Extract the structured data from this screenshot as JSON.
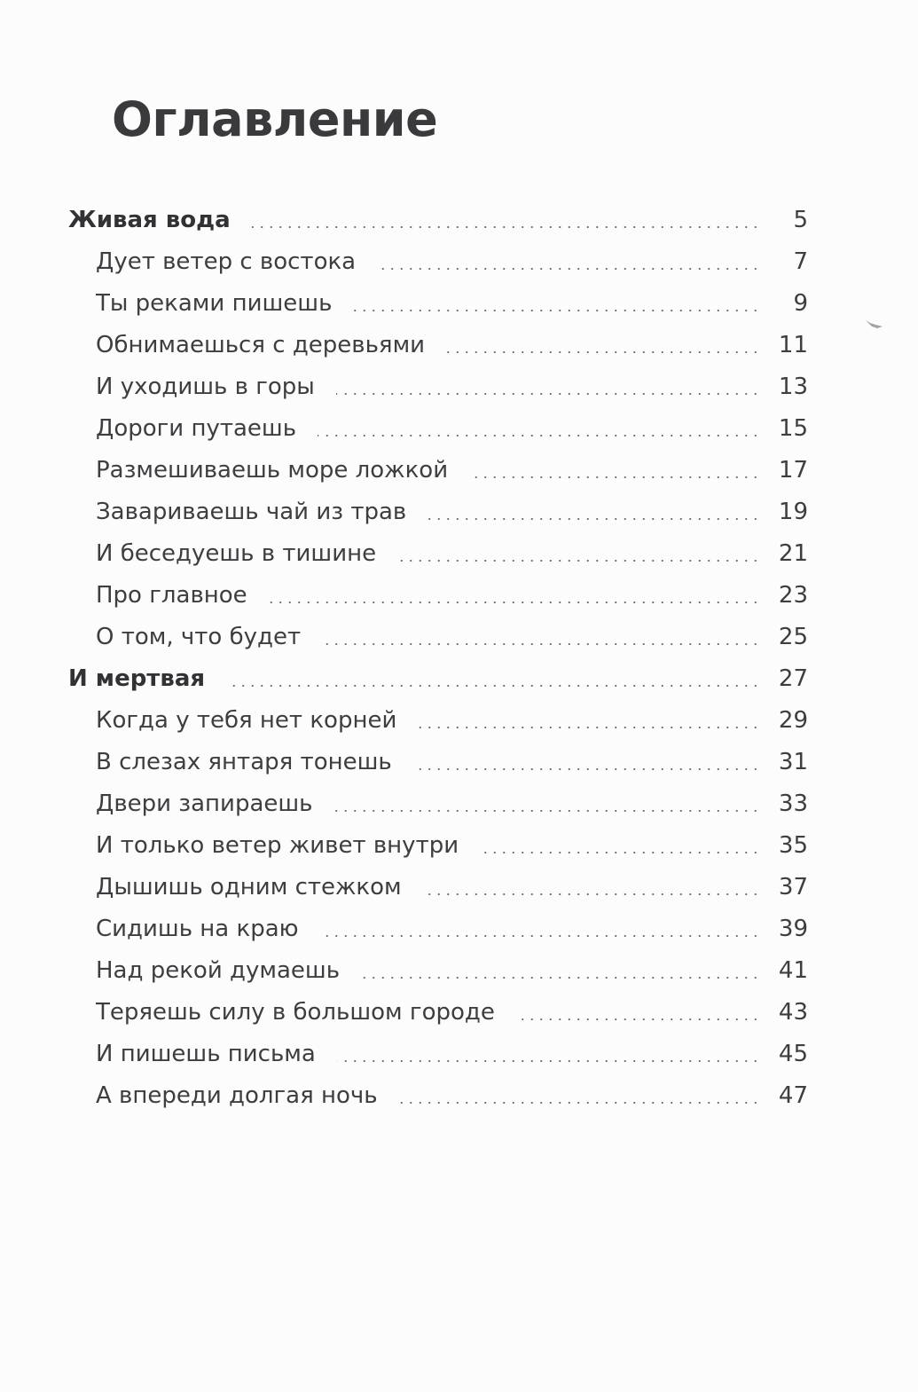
{
  "page": {
    "title": "Оглавление"
  },
  "toc": {
    "sections": [
      {
        "title": "Живая вода",
        "page": "5",
        "items": [
          {
            "title": "Дует ветер с востока",
            "page": "7"
          },
          {
            "title": "Ты реками пишешь",
            "page": "9"
          },
          {
            "title": "Обнимаешься с деревьями",
            "page": "11"
          },
          {
            "title": "И уходишь в горы",
            "page": "13"
          },
          {
            "title": "Дороги путаешь",
            "page": "15"
          },
          {
            "title": "Размешиваешь море ложкой",
            "page": "17"
          },
          {
            "title": "Завариваешь чай из трав",
            "page": "19"
          },
          {
            "title": "И беседуешь в тишине",
            "page": "21"
          },
          {
            "title": "Про главное",
            "page": "23"
          },
          {
            "title": "О том, что будет",
            "page": "25"
          }
        ]
      },
      {
        "title": "И мертвая",
        "page": "27",
        "items": [
          {
            "title": "Когда у тебя нет корней",
            "page": "29"
          },
          {
            "title": "В слезах янтаря тонешь",
            "page": "31"
          },
          {
            "title": "Двери запираешь",
            "page": "33"
          },
          {
            "title": "И только ветер живет внутри",
            "page": "35"
          },
          {
            "title": "Дышишь одним стежком",
            "page": "37"
          },
          {
            "title": "Сидишь на краю",
            "page": "39"
          },
          {
            "title": "Над рекой думаешь",
            "page": "41"
          },
          {
            "title": "Теряешь силу в большом городе",
            "page": "43"
          },
          {
            "title": "И пишешь письма",
            "page": "45"
          },
          {
            "title": "А впереди долгая ночь",
            "page": "47"
          }
        ]
      }
    ]
  }
}
